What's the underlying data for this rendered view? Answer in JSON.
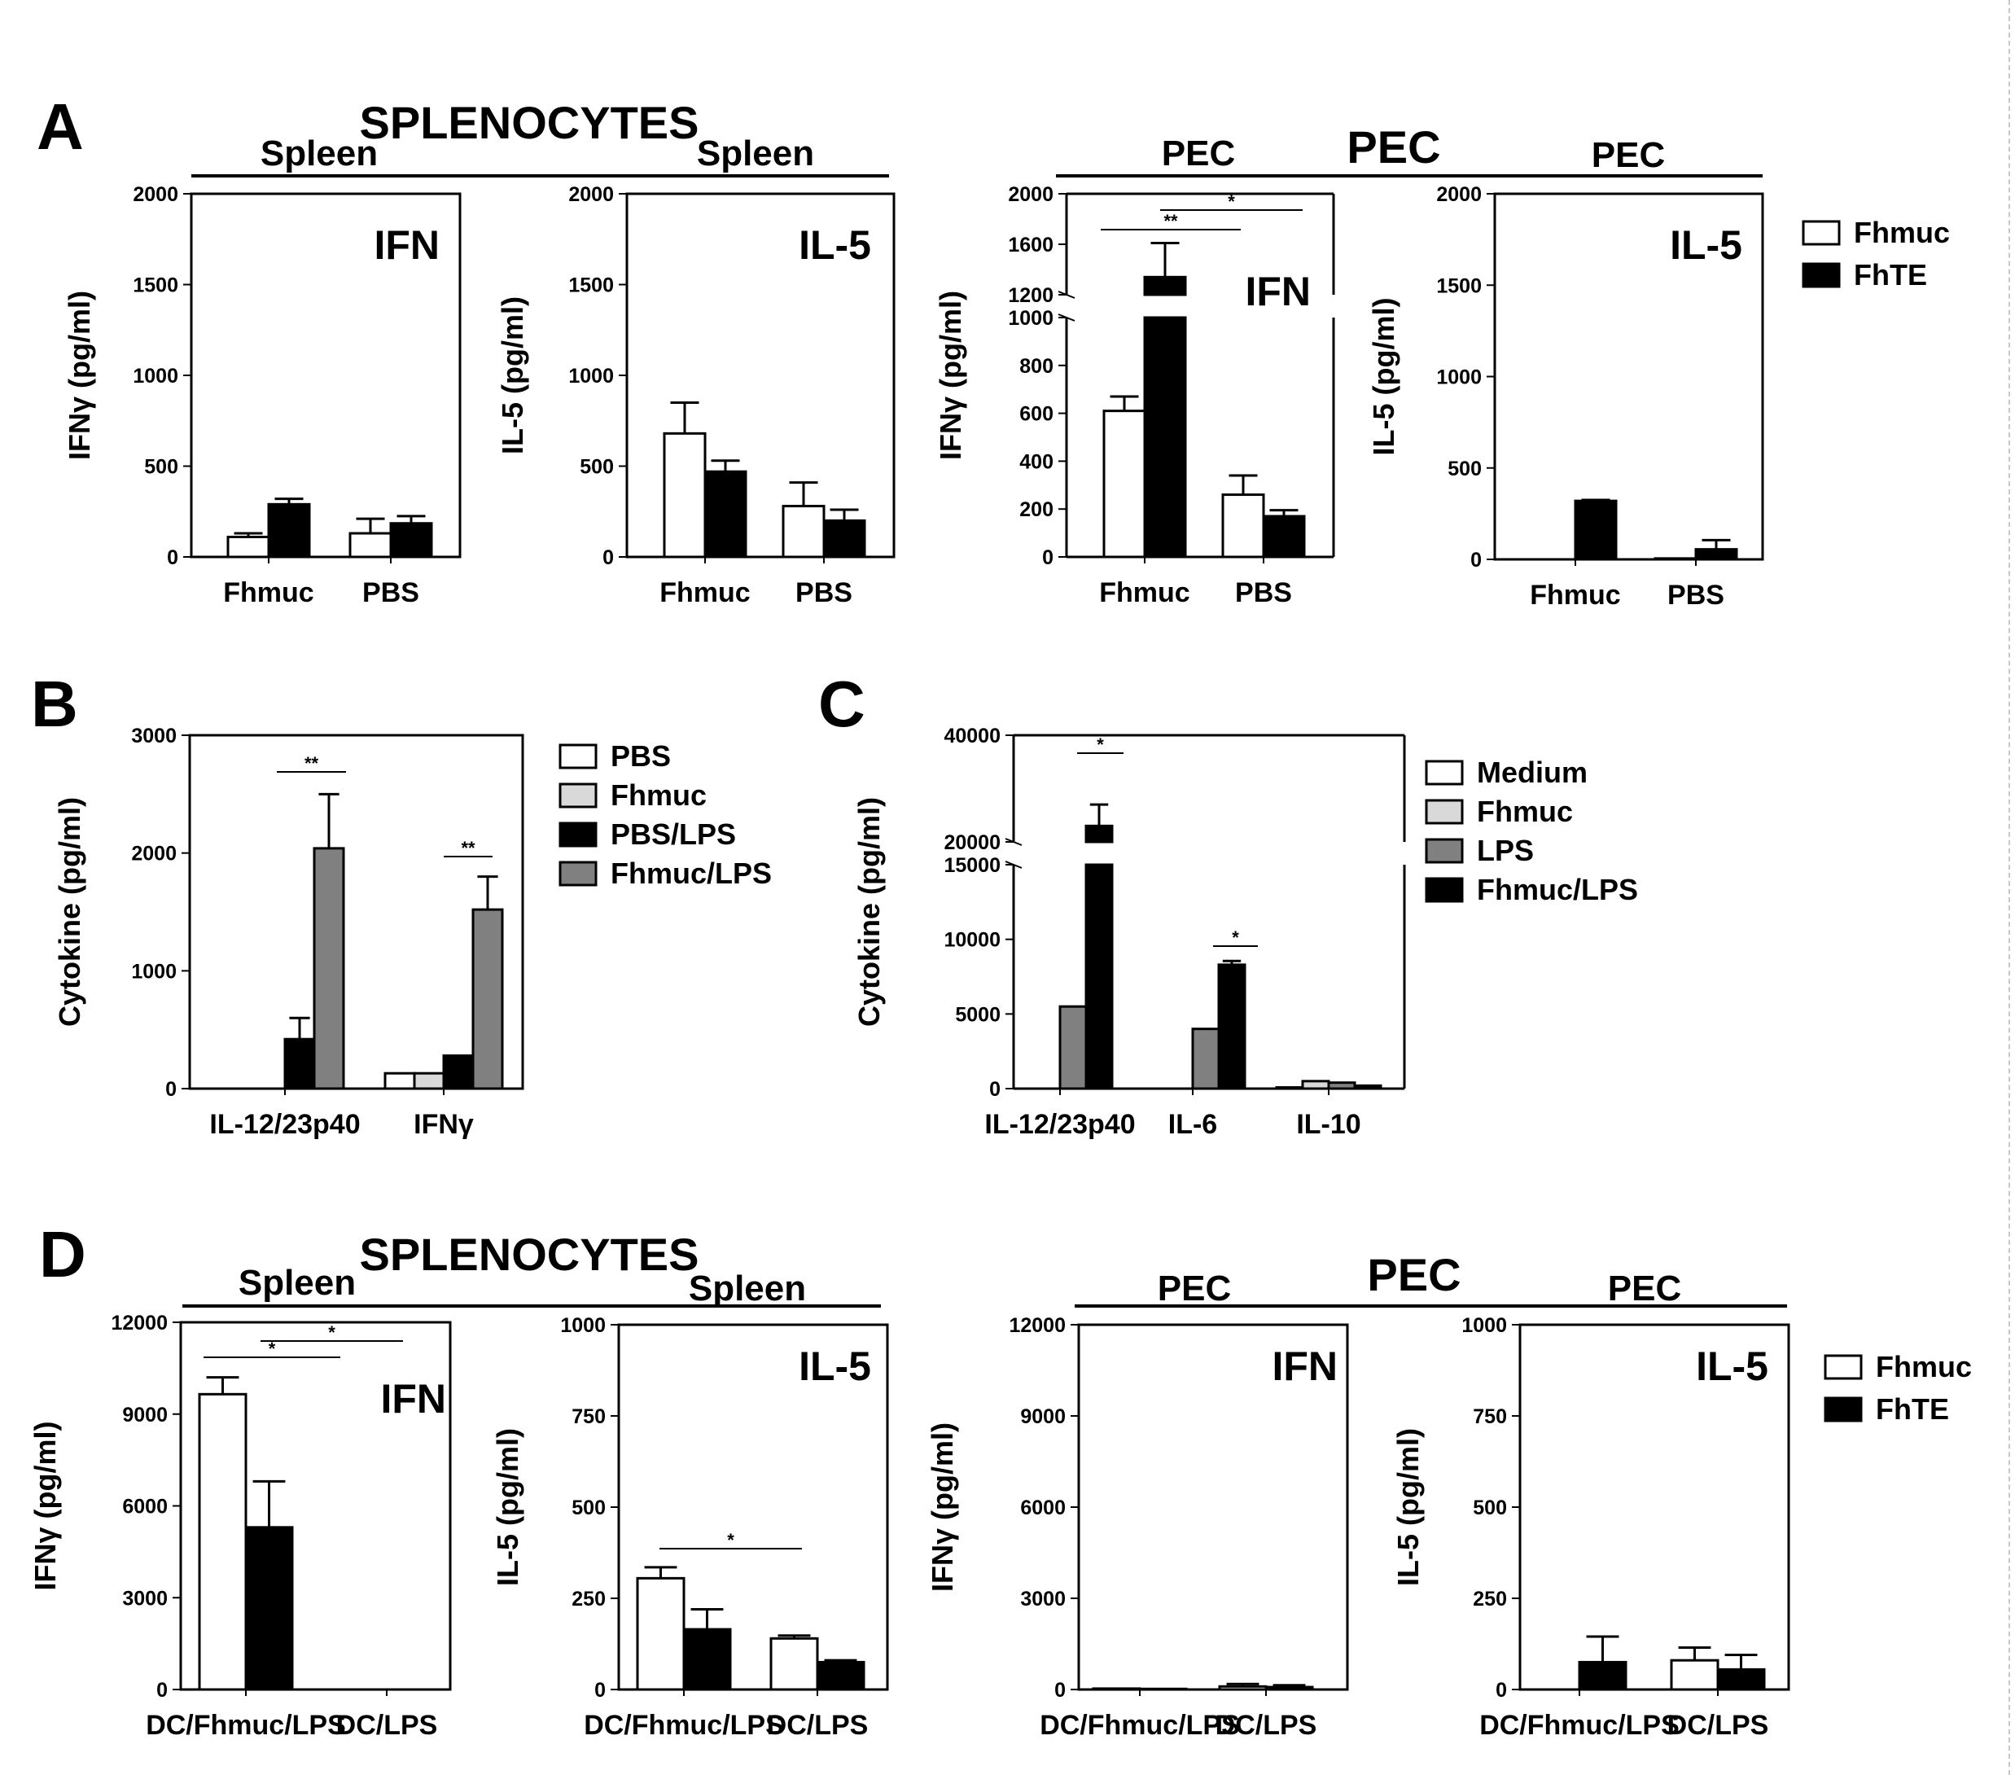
{
  "panel_labels": [
    "A",
    "B",
    "C",
    "D"
  ],
  "group_titles": [
    {
      "id": "A-splen",
      "text": "SPLENOCYTES"
    },
    {
      "id": "A-pec",
      "text": "PEC"
    },
    {
      "id": "D-splen",
      "text": "SPLENOCYTES"
    },
    {
      "id": "D-pec",
      "text": "PEC"
    }
  ],
  "legends": [
    {
      "id": "legA",
      "entries": [
        {
          "label": "Fhmuc",
          "color": "#ffffff"
        },
        {
          "label": "FhTE",
          "color": "#000000"
        }
      ]
    },
    {
      "id": "legB",
      "entries": [
        {
          "label": "PBS",
          "color": "#ffffff"
        },
        {
          "label": "Fhmuc",
          "color": "#d9d9d9"
        },
        {
          "label": "PBS/LPS",
          "color": "#000000"
        },
        {
          "label": "Fhmuc/LPS",
          "color": "#808080"
        }
      ]
    },
    {
      "id": "legC",
      "entries": [
        {
          "label": "Medium",
          "color": "#ffffff"
        },
        {
          "label": "Fhmuc",
          "color": "#d9d9d9"
        },
        {
          "label": "LPS",
          "color": "#808080"
        },
        {
          "label": "Fhmuc/LPS",
          "color": "#000000"
        }
      ]
    },
    {
      "id": "legD",
      "entries": [
        {
          "label": "Fhmuc",
          "color": "#ffffff"
        },
        {
          "label": "FhTE",
          "color": "#000000"
        }
      ]
    }
  ],
  "chart_data": [
    {
      "id": "A1",
      "type": "bar",
      "title": "Spleen",
      "inset": "IFN\u0003",
      "ylabel": "IFNγ  (pg/ml)",
      "ylim": [
        0,
        2000
      ],
      "yticks": [
        "0",
        "500",
        "1000",
        "1500",
        "2000"
      ],
      "categories": [
        "Fhmuc",
        "PBS"
      ],
      "series": [
        {
          "name": "Fhmuc",
          "color": "#ffffff",
          "values": [
            110,
            130
          ],
          "errors": [
            20,
            80
          ]
        },
        {
          "name": "FhTE",
          "color": "#000000",
          "values": [
            290,
            185
          ],
          "errors": [
            30,
            40
          ]
        }
      ]
    },
    {
      "id": "A2",
      "type": "bar",
      "title": "Spleen",
      "inset": "IL-5",
      "ylabel": "IL-5  (pg/ml)",
      "ylim": [
        0,
        2000
      ],
      "yticks": [
        "0",
        "500",
        "1000",
        "1500",
        "2000"
      ],
      "categories": [
        "Fhmuc",
        "PBS"
      ],
      "series": [
        {
          "name": "Fhmuc",
          "color": "#ffffff",
          "values": [
            680,
            280
          ],
          "errors": [
            170,
            130
          ]
        },
        {
          "name": "FhTE",
          "color": "#000000",
          "values": [
            470,
            200
          ],
          "errors": [
            60,
            60
          ]
        }
      ]
    },
    {
      "id": "A3",
      "type": "bar",
      "title": "PEC",
      "inset": "IFN\u0003",
      "ylabel": "IFNγ  (pg/ml)",
      "y_break": [
        1000,
        1200
      ],
      "ylim": [
        0,
        2000
      ],
      "yticks": [
        "0",
        "200",
        "400",
        "600",
        "800",
        "1000",
        "1200",
        "1600",
        "2000"
      ],
      "categories": [
        "Fhmuc",
        "PBS"
      ],
      "series": [
        {
          "name": "Fhmuc",
          "color": "#ffffff",
          "values": [
            610,
            260
          ],
          "errors": [
            60,
            80
          ]
        },
        {
          "name": "FhTE",
          "color": "#000000",
          "values": [
            1340,
            170
          ],
          "errors": [
            270,
            25
          ]
        }
      ],
      "significance": [
        "**",
        "*"
      ]
    },
    {
      "id": "A4",
      "type": "bar",
      "title": "PEC",
      "inset": "IL-5",
      "ylabel": "IL-5  (pg/ml)",
      "ylim": [
        0,
        2000
      ],
      "yticks": [
        "0",
        "500",
        "1000",
        "1500",
        "2000"
      ],
      "categories": [
        "Fhmuc",
        "PBS"
      ],
      "series": [
        {
          "name": "Fhmuc",
          "color": "#ffffff",
          "values": [
            0,
            5
          ],
          "errors": [
            0,
            0
          ]
        },
        {
          "name": "FhTE",
          "color": "#000000",
          "values": [
            320,
            55
          ],
          "errors": [
            5,
            50
          ]
        }
      ]
    },
    {
      "id": "B",
      "type": "bar",
      "title": "",
      "ylabel": "Cytokine (pg/ml)",
      "ylim": [
        0,
        3000
      ],
      "yticks": [
        "0",
        "1000",
        "2000",
        "3000"
      ],
      "categories": [
        "IL-12/23p40",
        "IFNγ"
      ],
      "series": [
        {
          "name": "PBS",
          "color": "#ffffff",
          "values": [
            0,
            130
          ],
          "errors": [
            0,
            0
          ]
        },
        {
          "name": "Fhmuc",
          "color": "#d9d9d9",
          "values": [
            0,
            130
          ],
          "errors": [
            0,
            0
          ]
        },
        {
          "name": "PBS/LPS",
          "color": "#000000",
          "values": [
            420,
            280
          ],
          "errors": [
            180,
            0
          ]
        },
        {
          "name": "Fhmuc/LPS",
          "color": "#808080",
          "values": [
            2040,
            1520
          ],
          "errors": [
            460,
            280
          ]
        }
      ],
      "significance": [
        "**",
        "**"
      ]
    },
    {
      "id": "C",
      "type": "bar",
      "title": "",
      "ylabel": "Cytokine (pg/ml)",
      "y_break": [
        15000,
        20000
      ],
      "ylim": [
        0,
        40000
      ],
      "yticks": [
        "0",
        "5000",
        "10000",
        "15000",
        "20000",
        "40000"
      ],
      "categories": [
        "IL-12/23p40",
        "IL-6",
        "IL-10"
      ],
      "series": [
        {
          "name": "Medium",
          "color": "#ffffff",
          "values": [
            0,
            0,
            80
          ],
          "errors": [
            0,
            0,
            0
          ]
        },
        {
          "name": "Fhmuc",
          "color": "#d9d9d9",
          "values": [
            0,
            0,
            500
          ],
          "errors": [
            0,
            0,
            0
          ]
        },
        {
          "name": "LPS",
          "color": "#808080",
          "values": [
            5500,
            4000,
            400
          ],
          "errors": [
            0,
            0,
            0
          ]
        },
        {
          "name": "Fhmuc/LPS",
          "color": "#000000",
          "values": [
            23000,
            8300,
            200
          ],
          "errors": [
            4000,
            250,
            0
          ]
        }
      ],
      "significance": [
        "*",
        "*"
      ]
    },
    {
      "id": "D1",
      "type": "bar",
      "title": "Spleen",
      "inset": "IFN\u0003",
      "ylabel": "IFNγ  (pg/ml)",
      "ylim": [
        0,
        12000
      ],
      "yticks": [
        "0",
        "3000",
        "6000",
        "9000",
        "12000"
      ],
      "categories": [
        "DC/Fhmuc/LPS",
        "DC/LPS"
      ],
      "series": [
        {
          "name": "Fhmuc",
          "color": "#ffffff",
          "values": [
            9650,
            0
          ],
          "errors": [
            550,
            0
          ]
        },
        {
          "name": "FhTE",
          "color": "#000000",
          "values": [
            5300,
            0
          ],
          "errors": [
            1500,
            0
          ]
        }
      ],
      "significance": [
        "*",
        "*"
      ]
    },
    {
      "id": "D2",
      "type": "bar",
      "title": "Spleen",
      "inset": "IL-5",
      "ylabel": "IL-5  (pg/ml)",
      "ylim": [
        0,
        1000
      ],
      "yticks": [
        "0",
        "250",
        "500",
        "750",
        "1000"
      ],
      "categories": [
        "DC/Fhmuc/LPS",
        "DC/LPS"
      ],
      "series": [
        {
          "name": "Fhmuc",
          "color": "#ffffff",
          "values": [
            305,
            140
          ],
          "errors": [
            30,
            8
          ]
        },
        {
          "name": "FhTE",
          "color": "#000000",
          "values": [
            165,
            75
          ],
          "errors": [
            55,
            5
          ]
        }
      ],
      "significance": [
        "*"
      ]
    },
    {
      "id": "D3",
      "type": "bar",
      "title": "PEC",
      "inset": "IFN\u0003",
      "ylabel": "IFNγ  (pg/ml)",
      "ylim": [
        0,
        12000
      ],
      "yticks": [
        "0",
        "3000",
        "6000",
        "9000",
        "12000"
      ],
      "categories": [
        "DC/Fhmuc/LPS",
        "DC/LPS"
      ],
      "series": [
        {
          "name": "Fhmuc",
          "color": "#ffffff",
          "values": [
            30,
            100
          ],
          "errors": [
            0,
            80
          ]
        },
        {
          "name": "FhTE",
          "color": "#000000",
          "values": [
            20,
            80
          ],
          "errors": [
            0,
            60
          ]
        }
      ]
    },
    {
      "id": "D4",
      "type": "bar",
      "title": "PEC",
      "inset": "IL-5",
      "ylabel": "IL-5  (pg/ml)",
      "ylim": [
        0,
        1000
      ],
      "yticks": [
        "0",
        "250",
        "500",
        "750",
        "1000"
      ],
      "categories": [
        "DC/Fhmuc/LPS",
        "DC/LPS"
      ],
      "series": [
        {
          "name": "Fhmuc",
          "color": "#ffffff",
          "values": [
            0,
            80
          ],
          "errors": [
            0,
            35
          ]
        },
        {
          "name": "FhTE",
          "color": "#000000",
          "values": [
            75,
            55
          ],
          "errors": [
            70,
            40
          ]
        }
      ]
    }
  ]
}
